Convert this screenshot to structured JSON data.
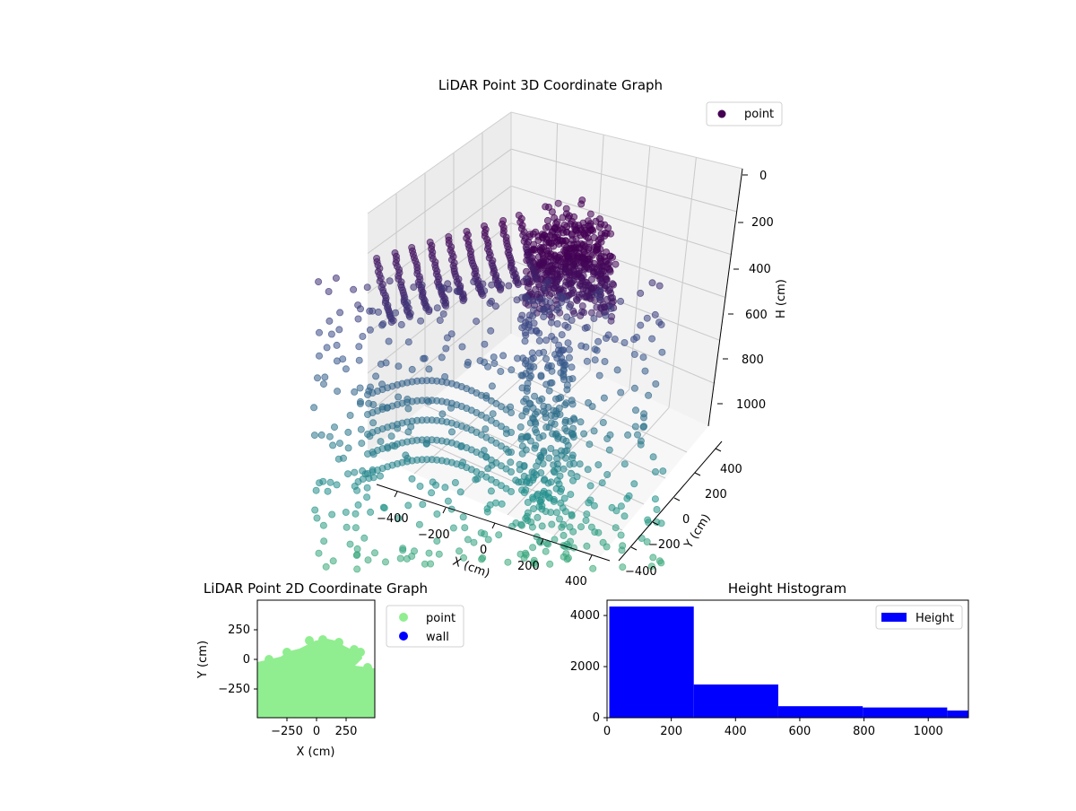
{
  "chart_data": [
    {
      "type": "scatter",
      "dimension": "3d",
      "title": "LiDAR Point 3D Coordinate Graph",
      "xlabel": "X (cm)",
      "ylabel": "Y (cm)",
      "zlabel": "H (cm)",
      "x_ticks": [
        "−400",
        "−200",
        "0",
        "200",
        "400"
      ],
      "y_ticks": [
        "400",
        "200",
        "0",
        "−200",
        "−400"
      ],
      "z_ticks": [
        "0",
        "200",
        "400",
        "600",
        "800",
        "1000"
      ],
      "xlim": [
        -500,
        500
      ],
      "ylim": [
        -450,
        450
      ],
      "zlim": [
        0,
        1100
      ],
      "z_axis_inverted": true,
      "colormap": "viridis (by height)",
      "legend": [
        {
          "label": "point",
          "color": "#440154"
        }
      ],
      "legend_position": "top-right",
      "grid": true
    },
    {
      "type": "scatter",
      "title": "LiDAR Point 2D Coordinate Graph",
      "xlabel": "X (cm)",
      "ylabel": "Y (cm)",
      "x_ticks": [
        "−250",
        "0",
        "250"
      ],
      "y_ticks": [
        "250",
        "0",
        "−250"
      ],
      "xlim": [
        -500,
        500
      ],
      "ylim": [
        -500,
        500
      ],
      "series": [
        {
          "name": "point",
          "color": "#90ee90"
        },
        {
          "name": "wall",
          "color": "#0000ff"
        }
      ],
      "legend_position": "outside-right"
    },
    {
      "type": "bar",
      "subtype": "histogram",
      "title": "Height Histogram",
      "x_ticks": [
        "0",
        "200",
        "400",
        "600",
        "800",
        "1000"
      ],
      "y_ticks": [
        "0",
        "2000",
        "4000"
      ],
      "xlim": [
        0,
        1125
      ],
      "ylim": [
        0,
        4600
      ],
      "bin_edges": [
        7,
        270,
        533,
        796,
        1059,
        1125
      ],
      "values": [
        4350,
        1300,
        450,
        400,
        280
      ],
      "color": "#0000ff",
      "series": [
        {
          "name": "Height",
          "color": "#0000ff"
        }
      ],
      "legend_position": "top-right"
    }
  ]
}
